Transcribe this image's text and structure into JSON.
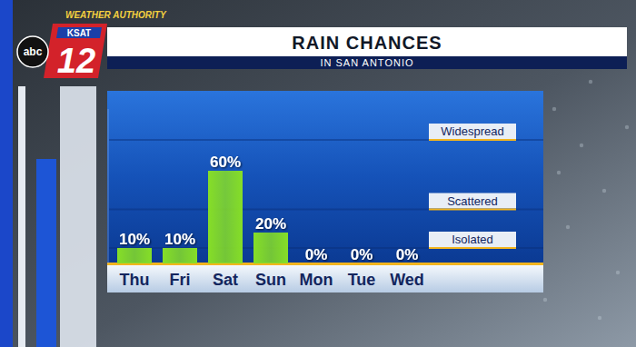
{
  "chart_data": {
    "type": "bar",
    "title": "RAIN CHANCES",
    "subtitle": "IN SAN ANTONIO",
    "categories": [
      "Thu",
      "Fri",
      "Sat",
      "Sun",
      "Mon",
      "Tue",
      "Wed"
    ],
    "values": [
      10,
      10,
      60,
      20,
      0,
      0,
      0
    ],
    "value_labels": [
      "10%",
      "10%",
      "60%",
      "20%",
      "0%",
      "0%",
      "0%"
    ],
    "color": "#86de27",
    "ylim": [
      0,
      100
    ],
    "yticks": [
      {
        "value": 10,
        "label": "Isolated"
      },
      {
        "value": 35,
        "label": "Scattered"
      },
      {
        "value": 80,
        "label": "Widespread"
      }
    ],
    "grid": true,
    "data_labels": true
  },
  "branding": {
    "tagline": "WEATHER AUTHORITY",
    "station": "KSAT",
    "channel": "12",
    "network": "abc"
  }
}
